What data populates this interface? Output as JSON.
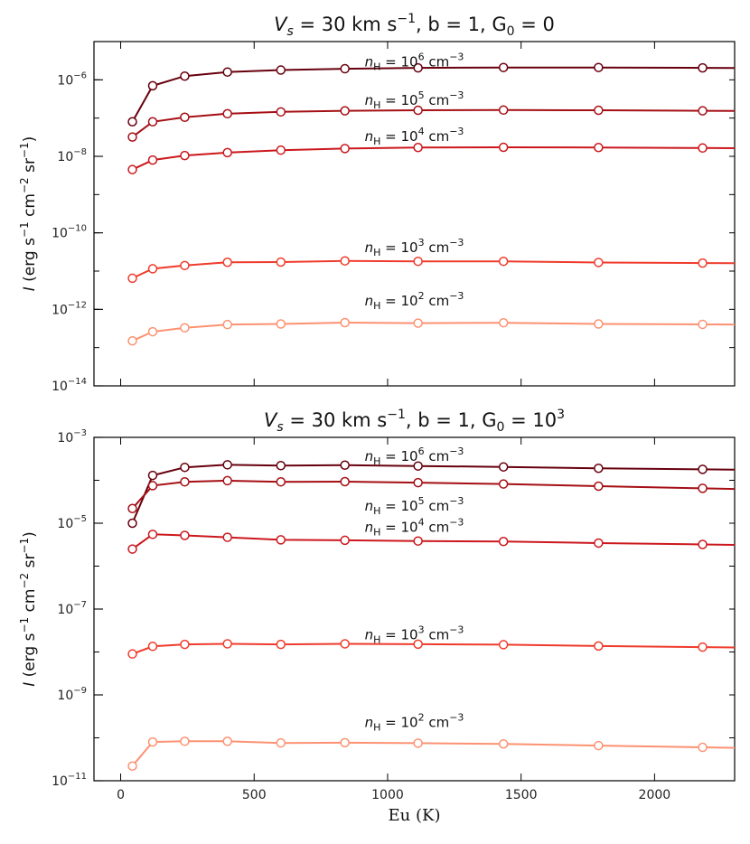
{
  "chart_data": [
    {
      "type": "line",
      "title": "V_s = 30 km s^-1, b = 1, G_0 = 0",
      "title_parts": {
        "lead": "V",
        "lead_sub": "s",
        "speed": " = 30 km s",
        "speed_sup": "−1",
        "b": ", b = 1, G",
        "g_sub": "0",
        "g_val": " = 0"
      },
      "xlabel": "",
      "ylabel": "I (erg s^-1 cm^-2 sr^-1)",
      "y_scale": "log",
      "xlim": [
        -100,
        2300
      ],
      "ylim": [
        1e-14,
        1e-05
      ],
      "x_ticks": [
        0,
        500,
        1000,
        1500,
        2000
      ],
      "y_ticks": [
        {
          "exp": -14,
          "label": "10",
          "sup": "−14"
        },
        {
          "exp": -12,
          "label": "10",
          "sup": "−12"
        },
        {
          "exp": -10,
          "label": "10",
          "sup": "−10"
        },
        {
          "exp": -8,
          "label": "10",
          "sup": "−8"
        },
        {
          "exp": -6,
          "label": "10",
          "sup": "−6"
        }
      ],
      "x": [
        44,
        120,
        240,
        400,
        600,
        840,
        1114,
        1434,
        1790,
        2180
      ],
      "series": [
        {
          "name": "n_H = 10^6 cm^-3",
          "label_main": "n",
          "label_sub": "H",
          "label_eq": " = 10",
          "label_sup": "6",
          "label_unit": " cm",
          "label_unit_sup": "−3",
          "label_x": 1100,
          "label_y_exp": -5.65,
          "color": "#67000d",
          "values": [
            8e-08,
            7e-07,
            1.25e-06,
            1.6e-06,
            1.8e-06,
            1.95e-06,
            2.05e-06,
            2.1e-06,
            2.1e-06,
            2.05e-06
          ]
        },
        {
          "name": "n_H = 10^5 cm^-3",
          "label_main": "n",
          "label_sub": "H",
          "label_eq": " = 10",
          "label_sup": "5",
          "label_unit": " cm",
          "label_unit_sup": "−3",
          "label_x": 1100,
          "label_y_exp": -6.65,
          "color": "#a50f15",
          "values": [
            3.2e-08,
            8e-08,
            1.05e-07,
            1.3e-07,
            1.45e-07,
            1.55e-07,
            1.6e-07,
            1.62e-07,
            1.6e-07,
            1.55e-07
          ]
        },
        {
          "name": "n_H = 10^4 cm^-3",
          "label_main": "n",
          "label_sub": "H",
          "label_eq": " = 10",
          "label_sup": "4",
          "label_unit": " cm",
          "label_unit_sup": "−3",
          "label_x": 1100,
          "label_y_exp": -7.6,
          "color": "#cb181d",
          "values": [
            4.5e-09,
            8e-09,
            1.05e-08,
            1.25e-08,
            1.45e-08,
            1.6e-08,
            1.7e-08,
            1.72e-08,
            1.7e-08,
            1.65e-08
          ]
        },
        {
          "name": "n_H = 10^3 cm^-3",
          "label_main": "n",
          "label_sub": "H",
          "label_eq": " = 10",
          "label_sup": "3",
          "label_unit": " cm",
          "label_unit_sup": "−3",
          "label_x": 1100,
          "label_y_exp": -10.5,
          "color": "#ef3b2c",
          "values": [
            6.5e-12,
            1.15e-11,
            1.4e-11,
            1.7e-11,
            1.72e-11,
            1.85e-11,
            1.8e-11,
            1.8e-11,
            1.68e-11,
            1.62e-11
          ]
        },
        {
          "name": "n_H = 10^2 cm^-3",
          "label_main": "n",
          "label_sub": "H",
          "label_eq": " = 10",
          "label_sup": "2",
          "label_unit": " cm",
          "label_unit_sup": "−3",
          "label_x": 1100,
          "label_y_exp": -11.9,
          "color": "#fc9272",
          "values": [
            1.5e-13,
            2.6e-13,
            3.3e-13,
            4e-13,
            4.15e-13,
            4.5e-13,
            4.35e-13,
            4.45e-13,
            4.15e-13,
            4.05e-13
          ]
        }
      ]
    },
    {
      "type": "line",
      "title": "V_s = 30 km s^-1, b = 1, G_0 = 10^3",
      "title_parts": {
        "lead": "V",
        "lead_sub": "s",
        "speed": " = 30 km s",
        "speed_sup": "−1",
        "b": ", b = 1, G",
        "g_sub": "0",
        "g_val": " = 10",
        "g_sup": "3"
      },
      "xlabel": "Eu (K)",
      "ylabel": "I (erg s^-1 cm^-2 sr^-1)",
      "y_scale": "log",
      "xlim": [
        -100,
        2300
      ],
      "ylim": [
        1e-11,
        0.001
      ],
      "x_ticks": [
        0,
        500,
        1000,
        1500,
        2000
      ],
      "y_ticks": [
        {
          "exp": -11,
          "label": "10",
          "sup": "−11"
        },
        {
          "exp": -9,
          "label": "10",
          "sup": "−9"
        },
        {
          "exp": -7,
          "label": "10",
          "sup": "−7"
        },
        {
          "exp": -5,
          "label": "10",
          "sup": "−5"
        },
        {
          "exp": -3,
          "label": "10",
          "sup": "−3"
        }
      ],
      "x": [
        44,
        120,
        240,
        400,
        600,
        840,
        1114,
        1434,
        1790,
        2180
      ],
      "series": [
        {
          "name": "n_H = 10^6 cm^-3",
          "label_main": "n",
          "label_sub": "H",
          "label_eq": " = 10",
          "label_sup": "6",
          "label_unit": " cm",
          "label_unit_sup": "−3",
          "label_x": 1100,
          "label_y_exp": -3.55,
          "color": "#67000d",
          "values": [
            1e-05,
            0.00013,
            0.0002,
            0.00023,
            0.00022,
            0.000225,
            0.000215,
            0.000205,
            0.00019,
            0.00018
          ]
        },
        {
          "name": "n_H = 10^5 cm^-3",
          "label_main": "n",
          "label_sub": "H",
          "label_eq": " = 10",
          "label_sup": "5",
          "label_unit": " cm",
          "label_unit_sup": "−3",
          "label_x": 1100,
          "label_y_exp": -4.7,
          "color": "#a50f15",
          "values": [
            2.2e-05,
            7.5e-05,
            9.2e-05,
            9.8e-05,
            9.2e-05,
            9.3e-05,
            8.8e-05,
            8.2e-05,
            7.3e-05,
            6.5e-05
          ]
        },
        {
          "name": "n_H = 10^4 cm^-3",
          "label_main": "n",
          "label_sub": "H",
          "label_eq": " = 10",
          "label_sup": "4",
          "label_unit": " cm",
          "label_unit_sup": "−3",
          "label_x": 1100,
          "label_y_exp": -5.2,
          "color": "#cb181d",
          "values": [
            2.5e-06,
            5.5e-06,
            5.2e-06,
            4.7e-06,
            4.1e-06,
            4e-06,
            3.85e-06,
            3.75e-06,
            3.45e-06,
            3.2e-06
          ]
        },
        {
          "name": "n_H = 10^3 cm^-3",
          "label_main": "n",
          "label_sub": "H",
          "label_eq": " = 10",
          "label_sup": "3",
          "label_unit": " cm",
          "label_unit_sup": "−3",
          "label_x": 1100,
          "label_y_exp": -7.7,
          "color": "#ef3b2c",
          "values": [
            9e-09,
            1.35e-08,
            1.5e-08,
            1.55e-08,
            1.5e-08,
            1.55e-08,
            1.52e-08,
            1.48e-08,
            1.38e-08,
            1.3e-08
          ]
        },
        {
          "name": "n_H = 10^2 cm^-3",
          "label_main": "n",
          "label_sub": "H",
          "label_eq": " = 10",
          "label_sup": "2",
          "label_unit": " cm",
          "label_unit_sup": "−3",
          "label_x": 1100,
          "label_y_exp": -9.75,
          "color": "#fc9272",
          "values": [
            2.2e-11,
            8e-11,
            8.3e-11,
            8.3e-11,
            7.6e-11,
            7.7e-11,
            7.5e-11,
            7.2e-11,
            6.6e-11,
            6e-11
          ]
        }
      ]
    }
  ]
}
